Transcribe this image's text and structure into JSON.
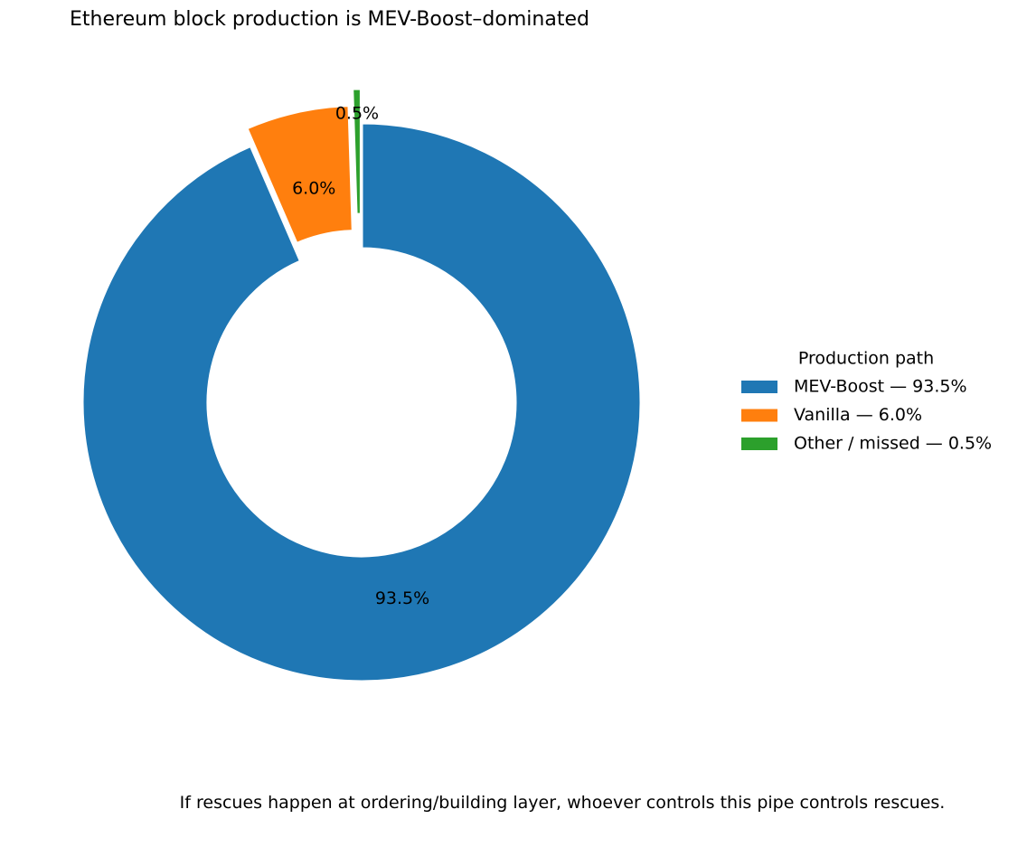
{
  "chart_data": {
    "type": "pie",
    "title": "Ethereum block production is MEV-Boost–dominated",
    "categories": [
      "MEV-Boost — 93.5%",
      "Vanilla — 6.0%",
      "Other / missed — 0.5%"
    ],
    "values": [
      93.5,
      6.0,
      0.5
    ],
    "value_labels": [
      "93.5%",
      "6.0%",
      "0.5%"
    ],
    "colors": [
      "#1f77b4",
      "#ff7f0e",
      "#2ca02c"
    ],
    "legend_title": "Production path",
    "legend_position": "right",
    "caption": "If rescues happen at ordering/building layer, whoever controls this pipe controls rescues."
  }
}
